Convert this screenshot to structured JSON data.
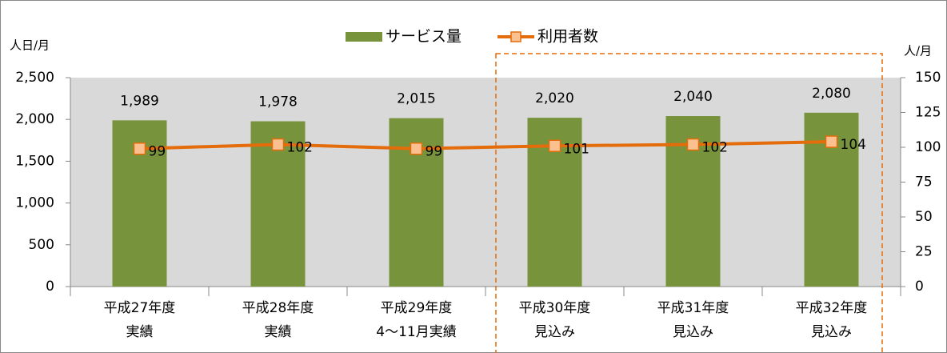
{
  "chart_data": {
    "type": "bar_line",
    "y_label": "人日/月",
    "y2_label": "人/月",
    "categories": [
      [
        "平成27年度",
        "実績"
      ],
      [
        "平成28年度",
        "実績"
      ],
      [
        "平成29年度",
        "4〜11月実績"
      ],
      [
        "平成30年度",
        "見込み"
      ],
      [
        "平成31年度",
        "見込み"
      ],
      [
        "平成32年度",
        "見込み"
      ]
    ],
    "series": [
      {
        "name": "サービス量",
        "color": "#77933c",
        "kind": "bar",
        "values": [
          1989,
          1978,
          2015,
          2020,
          2040,
          2080
        ],
        "value_labels": [
          "1,989",
          "1,978",
          "2,015",
          "2,020",
          "2,040",
          "2,080"
        ]
      },
      {
        "name": "利用者数",
        "color": "#e46c0a",
        "kind": "line",
        "axis": "y2",
        "values": [
          99,
          102,
          99,
          101,
          102,
          104
        ]
      }
    ],
    "ylim": [
      0,
      2500
    ],
    "yticks": [
      0,
      500,
      {
        "value": 1000,
        "label": "1,000"
      },
      {
        "value": 1500,
        "label": "1,500"
      },
      {
        "value": 2000,
        "label": "2,000"
      },
      {
        "value": 2500,
        "label": "2,500"
      }
    ],
    "y2lim": [
      0,
      150
    ],
    "y2ticks": [
      0,
      25,
      50,
      75,
      100,
      125,
      150
    ],
    "plot_background": "#d9d9d9"
  }
}
